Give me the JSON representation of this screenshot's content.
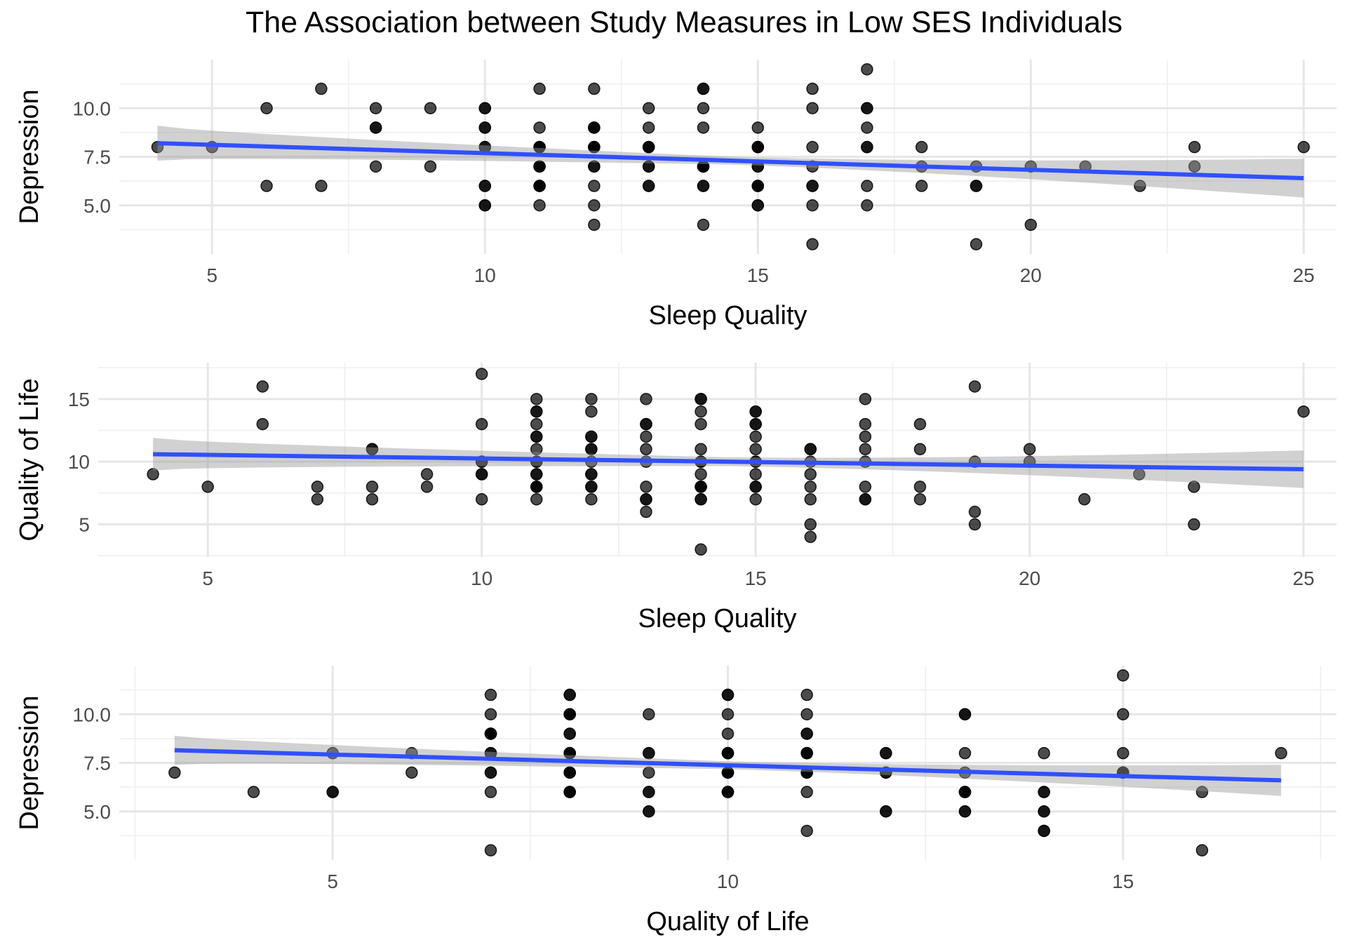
{
  "title": "The Association between Study Measures in Low SES Individuals",
  "chart_data": [
    {
      "type": "scatter",
      "xlabel": "Sleep Quality",
      "ylabel": "Depression",
      "xlim": [
        3.3,
        25.6
      ],
      "ylim": [
        2.5,
        12.5
      ],
      "x_ticks": [
        5,
        10,
        15,
        20,
        25
      ],
      "x_tick_labels": [
        "5",
        "10",
        "15",
        "20",
        "25"
      ],
      "y_ticks": [
        5,
        7.5,
        10
      ],
      "y_tick_labels": [
        "5.0",
        "7.5",
        "10.0"
      ],
      "grid": true,
      "points": [
        [
          4,
          8
        ],
        [
          5,
          8
        ],
        [
          6,
          6
        ],
        [
          6,
          10
        ],
        [
          7,
          11
        ],
        [
          7,
          6
        ],
        [
          8,
          9
        ],
        [
          8,
          10
        ],
        [
          8,
          7
        ],
        [
          8,
          9
        ],
        [
          9,
          10
        ],
        [
          9,
          7
        ],
        [
          10,
          10
        ],
        [
          10,
          9
        ],
        [
          10,
          8
        ],
        [
          10,
          6
        ],
        [
          10,
          5
        ],
        [
          10,
          5
        ],
        [
          10,
          9
        ],
        [
          10,
          10
        ],
        [
          10,
          8
        ],
        [
          10,
          6
        ],
        [
          11,
          8
        ],
        [
          11,
          8
        ],
        [
          11,
          7
        ],
        [
          11,
          6
        ],
        [
          11,
          6
        ],
        [
          11,
          9
        ],
        [
          11,
          5
        ],
        [
          11,
          11
        ],
        [
          11,
          7
        ],
        [
          11,
          6
        ],
        [
          11,
          8
        ],
        [
          11,
          7
        ],
        [
          12,
          11
        ],
        [
          12,
          8
        ],
        [
          12,
          8
        ],
        [
          12,
          9
        ],
        [
          12,
          7
        ],
        [
          12,
          6
        ],
        [
          12,
          5
        ],
        [
          12,
          4
        ],
        [
          12,
          9
        ],
        [
          12,
          8
        ],
        [
          12,
          7
        ],
        [
          12,
          9
        ],
        [
          12,
          8
        ],
        [
          13,
          10
        ],
        [
          13,
          9
        ],
        [
          13,
          8
        ],
        [
          13,
          7
        ],
        [
          13,
          6
        ],
        [
          13,
          6
        ],
        [
          13,
          8
        ],
        [
          13,
          7
        ],
        [
          13,
          8
        ],
        [
          14,
          11
        ],
        [
          14,
          11
        ],
        [
          14,
          7
        ],
        [
          14,
          7
        ],
        [
          14,
          6
        ],
        [
          14,
          4
        ],
        [
          14,
          10
        ],
        [
          14,
          9
        ],
        [
          14,
          7
        ],
        [
          14,
          6
        ],
        [
          14,
          7
        ],
        [
          15,
          9
        ],
        [
          15,
          8
        ],
        [
          15,
          8
        ],
        [
          15,
          7
        ],
        [
          15,
          6
        ],
        [
          15,
          6
        ],
        [
          15,
          5
        ],
        [
          15,
          5
        ],
        [
          15,
          8
        ],
        [
          15,
          6
        ],
        [
          15,
          7
        ],
        [
          16,
          11
        ],
        [
          16,
          10
        ],
        [
          16,
          8
        ],
        [
          16,
          7
        ],
        [
          16,
          6
        ],
        [
          16,
          6
        ],
        [
          16,
          5
        ],
        [
          16,
          3
        ],
        [
          17,
          12
        ],
        [
          17,
          10
        ],
        [
          17,
          10
        ],
        [
          17,
          9
        ],
        [
          17,
          8
        ],
        [
          17,
          6
        ],
        [
          17,
          5
        ],
        [
          17,
          8
        ],
        [
          18,
          8
        ],
        [
          18,
          7
        ],
        [
          18,
          6
        ],
        [
          19,
          7
        ],
        [
          19,
          6
        ],
        [
          19,
          6
        ],
        [
          19,
          3
        ],
        [
          20,
          7
        ],
        [
          20,
          4
        ],
        [
          21,
          7
        ],
        [
          22,
          6
        ],
        [
          23,
          8
        ],
        [
          23,
          7
        ],
        [
          25,
          8
        ]
      ],
      "trend": {
        "method": "linear fit with confidence band",
        "x_range": [
          4,
          25
        ],
        "y_start": 8.2,
        "y_end": 6.4,
        "band_halfwidth_start": 0.9,
        "band_halfwidth_mid": 0.2,
        "band_halfwidth_end": 1.0
      }
    },
    {
      "type": "scatter",
      "xlabel": "Sleep Quality",
      "ylabel": "Quality of Life",
      "xlim": [
        3.0,
        25.6
      ],
      "ylim": [
        2.4,
        17.9
      ],
      "x_ticks": [
        5,
        10,
        15,
        20,
        25
      ],
      "x_tick_labels": [
        "5",
        "10",
        "15",
        "20",
        "25"
      ],
      "y_ticks": [
        5,
        10,
        15
      ],
      "y_tick_labels": [
        "5",
        "10",
        "15"
      ],
      "grid": true,
      "points": [
        [
          4,
          9
        ],
        [
          5,
          8
        ],
        [
          6,
          13
        ],
        [
          6,
          16
        ],
        [
          7,
          7
        ],
        [
          7,
          8
        ],
        [
          8,
          11
        ],
        [
          8,
          11
        ],
        [
          8,
          8
        ],
        [
          8,
          7
        ],
        [
          9,
          9
        ],
        [
          9,
          8
        ],
        [
          10,
          17
        ],
        [
          10,
          13
        ],
        [
          10,
          10
        ],
        [
          10,
          10
        ],
        [
          10,
          9
        ],
        [
          10,
          9
        ],
        [
          10,
          7
        ],
        [
          11,
          15
        ],
        [
          11,
          14
        ],
        [
          11,
          14
        ],
        [
          11,
          13
        ],
        [
          11,
          12
        ],
        [
          11,
          12
        ],
        [
          11,
          11
        ],
        [
          11,
          10
        ],
        [
          11,
          10
        ],
        [
          11,
          9
        ],
        [
          11,
          9
        ],
        [
          11,
          8
        ],
        [
          11,
          8
        ],
        [
          11,
          8
        ],
        [
          11,
          7
        ],
        [
          12,
          15
        ],
        [
          12,
          14
        ],
        [
          12,
          12
        ],
        [
          12,
          12
        ],
        [
          12,
          11
        ],
        [
          12,
          11
        ],
        [
          12,
          10
        ],
        [
          12,
          9
        ],
        [
          12,
          9
        ],
        [
          12,
          8
        ],
        [
          12,
          8
        ],
        [
          12,
          7
        ],
        [
          13,
          15
        ],
        [
          13,
          13
        ],
        [
          13,
          13
        ],
        [
          13,
          12
        ],
        [
          13,
          11
        ],
        [
          13,
          10
        ],
        [
          13,
          8
        ],
        [
          13,
          7
        ],
        [
          13,
          7
        ],
        [
          13,
          6
        ],
        [
          14,
          15
        ],
        [
          14,
          15
        ],
        [
          14,
          14
        ],
        [
          14,
          13
        ],
        [
          14,
          11
        ],
        [
          14,
          10
        ],
        [
          14,
          10
        ],
        [
          14,
          9
        ],
        [
          14,
          8
        ],
        [
          14,
          8
        ],
        [
          14,
          8
        ],
        [
          14,
          7
        ],
        [
          14,
          7
        ],
        [
          14,
          3
        ],
        [
          15,
          14
        ],
        [
          15,
          14
        ],
        [
          15,
          13
        ],
        [
          15,
          13
        ],
        [
          15,
          12
        ],
        [
          15,
          11
        ],
        [
          15,
          10
        ],
        [
          15,
          10
        ],
        [
          15,
          9
        ],
        [
          15,
          8
        ],
        [
          15,
          8
        ],
        [
          15,
          7
        ],
        [
          16,
          11
        ],
        [
          16,
          11
        ],
        [
          16,
          10
        ],
        [
          16,
          9
        ],
        [
          16,
          8
        ],
        [
          16,
          7
        ],
        [
          16,
          5
        ],
        [
          16,
          4
        ],
        [
          17,
          15
        ],
        [
          17,
          13
        ],
        [
          17,
          12
        ],
        [
          17,
          11
        ],
        [
          17,
          10
        ],
        [
          17,
          8
        ],
        [
          17,
          7
        ],
        [
          17,
          7
        ],
        [
          18,
          13
        ],
        [
          18,
          11
        ],
        [
          18,
          8
        ],
        [
          18,
          7
        ],
        [
          19,
          16
        ],
        [
          19,
          10
        ],
        [
          19,
          6
        ],
        [
          19,
          5
        ],
        [
          20,
          11
        ],
        [
          20,
          10
        ],
        [
          21,
          7
        ],
        [
          22,
          9
        ],
        [
          23,
          8
        ],
        [
          23,
          5
        ],
        [
          25,
          14
        ]
      ],
      "trend": {
        "method": "linear fit with confidence band",
        "x_range": [
          4,
          25
        ],
        "y_start": 10.6,
        "y_end": 9.4,
        "band_halfwidth_start": 1.3,
        "band_halfwidth_mid": 0.35,
        "band_halfwidth_end": 1.5
      }
    },
    {
      "type": "scatter",
      "xlabel": "Quality of Life",
      "ylabel": "Depression",
      "xlim": [
        2.3,
        17.7
      ],
      "ylim": [
        2.5,
        12.5
      ],
      "x_ticks": [
        5,
        10,
        15
      ],
      "x_tick_labels": [
        "5",
        "10",
        "15"
      ],
      "y_ticks": [
        5,
        7.5,
        10
      ],
      "y_tick_labels": [
        "5.0",
        "7.5",
        "10.0"
      ],
      "grid": true,
      "points": [
        [
          3,
          7
        ],
        [
          4,
          6
        ],
        [
          5,
          6
        ],
        [
          5,
          6
        ],
        [
          5,
          8
        ],
        [
          6,
          8
        ],
        [
          6,
          7
        ],
        [
          7,
          11
        ],
        [
          7,
          10
        ],
        [
          7,
          9
        ],
        [
          7,
          9
        ],
        [
          7,
          9
        ],
        [
          7,
          9
        ],
        [
          7,
          8
        ],
        [
          7,
          8
        ],
        [
          7,
          7
        ],
        [
          7,
          7
        ],
        [
          7,
          6
        ],
        [
          7,
          3
        ],
        [
          8,
          11
        ],
        [
          8,
          11
        ],
        [
          8,
          10
        ],
        [
          8,
          10
        ],
        [
          8,
          10
        ],
        [
          8,
          9
        ],
        [
          8,
          9
        ],
        [
          8,
          8
        ],
        [
          8,
          8
        ],
        [
          8,
          8
        ],
        [
          8,
          7
        ],
        [
          8,
          7
        ],
        [
          8,
          7
        ],
        [
          8,
          6
        ],
        [
          8,
          6
        ],
        [
          8,
          6
        ],
        [
          9,
          10
        ],
        [
          9,
          8
        ],
        [
          9,
          8
        ],
        [
          9,
          7
        ],
        [
          9,
          6
        ],
        [
          9,
          6
        ],
        [
          9,
          5
        ],
        [
          9,
          5
        ],
        [
          10,
          11
        ],
        [
          10,
          11
        ],
        [
          10,
          10
        ],
        [
          10,
          9
        ],
        [
          10,
          8
        ],
        [
          10,
          8
        ],
        [
          10,
          8
        ],
        [
          10,
          7
        ],
        [
          10,
          7
        ],
        [
          10,
          7
        ],
        [
          10,
          7
        ],
        [
          10,
          6
        ],
        [
          10,
          6
        ],
        [
          10,
          6
        ],
        [
          11,
          11
        ],
        [
          11,
          10
        ],
        [
          11,
          9
        ],
        [
          11,
          9
        ],
        [
          11,
          8
        ],
        [
          11,
          8
        ],
        [
          11,
          8
        ],
        [
          11,
          7
        ],
        [
          11,
          7
        ],
        [
          11,
          7
        ],
        [
          11,
          6
        ],
        [
          11,
          4
        ],
        [
          12,
          8
        ],
        [
          12,
          8
        ],
        [
          12,
          7
        ],
        [
          12,
          7
        ],
        [
          12,
          5
        ],
        [
          12,
          5
        ],
        [
          13,
          10
        ],
        [
          13,
          10
        ],
        [
          13,
          8
        ],
        [
          13,
          7
        ],
        [
          13,
          6
        ],
        [
          13,
          6
        ],
        [
          13,
          6
        ],
        [
          13,
          5
        ],
        [
          13,
          5
        ],
        [
          14,
          8
        ],
        [
          14,
          6
        ],
        [
          14,
          6
        ],
        [
          14,
          5
        ],
        [
          14,
          5
        ],
        [
          14,
          4
        ],
        [
          14,
          4
        ],
        [
          15,
          12
        ],
        [
          15,
          10
        ],
        [
          15,
          8
        ],
        [
          15,
          7
        ],
        [
          15,
          7
        ],
        [
          15,
          7
        ],
        [
          16,
          6
        ],
        [
          16,
          3
        ],
        [
          17,
          8
        ]
      ],
      "trend": {
        "method": "linear fit with confidence band",
        "x_range": [
          3,
          17
        ],
        "y_start": 8.15,
        "y_end": 6.6,
        "band_halfwidth_start": 0.75,
        "band_halfwidth_mid": 0.2,
        "band_halfwidth_end": 0.8
      }
    }
  ]
}
